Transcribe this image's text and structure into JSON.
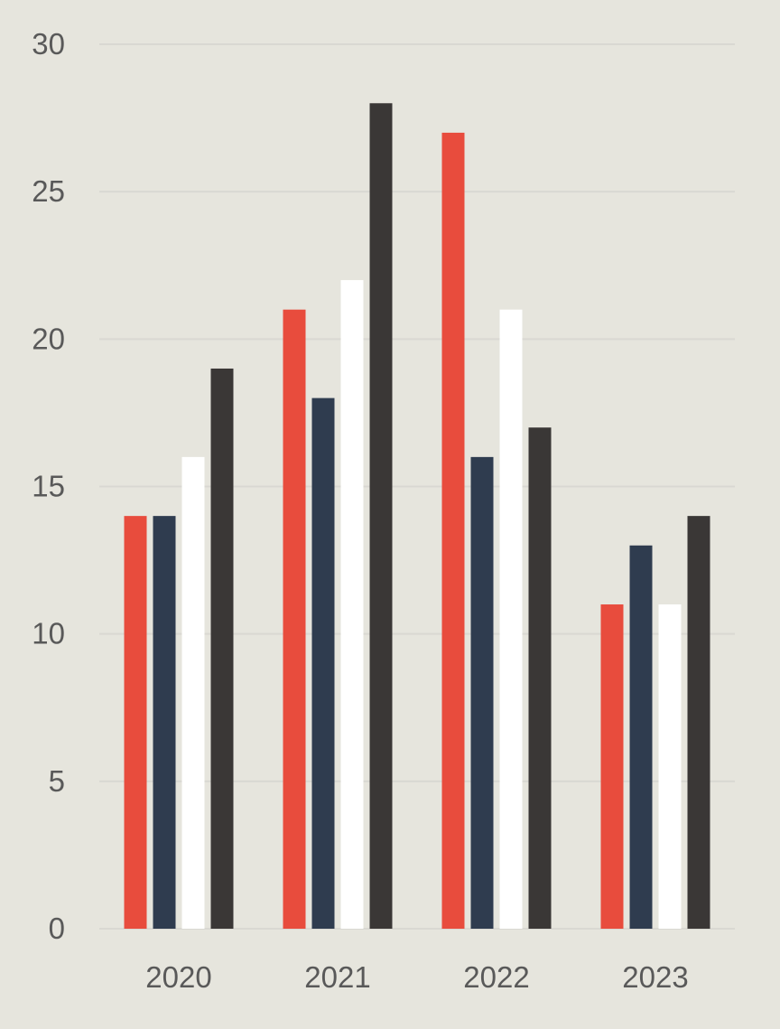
{
  "background": "#e6e5dd",
  "chart_data": {
    "type": "bar",
    "title": "",
    "xlabel": "",
    "ylabel": "",
    "categories": [
      "2020",
      "2021",
      "2022",
      "2023"
    ],
    "ylim": [
      0,
      30
    ],
    "yticks": [
      0,
      5,
      10,
      15,
      20,
      25,
      30
    ],
    "grid": true,
    "legend": "none",
    "series": [
      {
        "color": "#e84c3d",
        "values": [
          14,
          21,
          27,
          11
        ]
      },
      {
        "color": "#2f3c4f",
        "values": [
          14,
          18,
          16,
          13
        ]
      },
      {
        "color": "#ffffff",
        "values": [
          16,
          22,
          21,
          11
        ]
      },
      {
        "color": "#3a3736",
        "values": [
          19,
          28,
          17,
          14
        ]
      }
    ],
    "colors": {
      "grid": "#d9d8d2",
      "tick_text": "#595959"
    }
  }
}
